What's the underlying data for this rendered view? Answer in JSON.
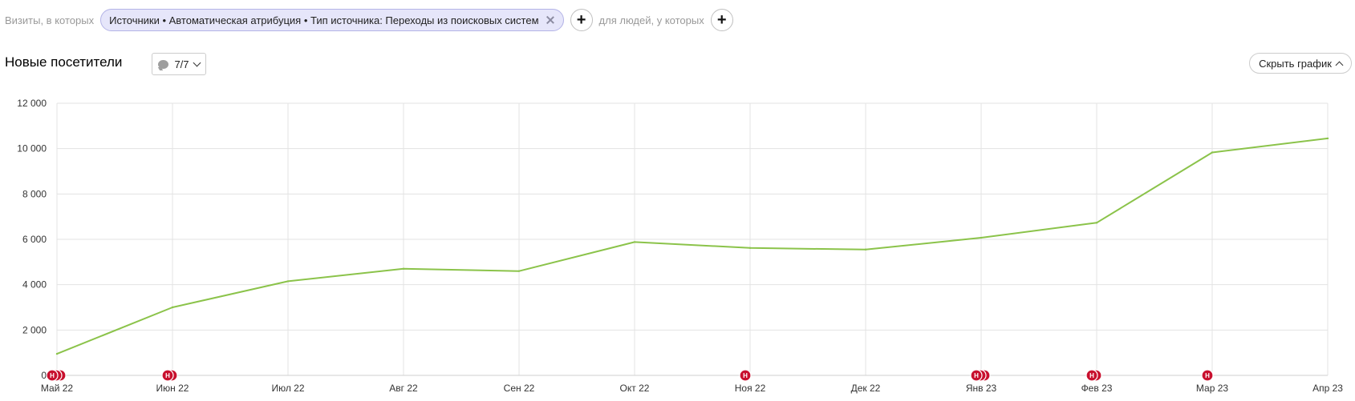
{
  "filters": {
    "prefix_label": "Визиты, в которых",
    "chip_text": "Источники • Автоматическая атрибуция • Тип источника: Переходы из поисковых систем",
    "people_label": "для людей, у которых",
    "add_symbol": "+"
  },
  "header": {
    "title": "Новые посетители",
    "comments_count": "7/7",
    "hide_chart_label": "Скрыть график"
  },
  "chart_data": {
    "type": "line",
    "categories": [
      "Май 22",
      "Июн 22",
      "Июл 22",
      "Авг 22",
      "Сен 22",
      "Окт 22",
      "Ноя 22",
      "Дек 22",
      "Янв 23",
      "Фев 23",
      "Мар 23",
      "Апр 23"
    ],
    "values": [
      950,
      3000,
      4150,
      4700,
      4600,
      5880,
      5620,
      5550,
      6070,
      6730,
      9830,
      10450
    ],
    "yticks": [
      0,
      2000,
      4000,
      6000,
      8000,
      10000,
      12000
    ],
    "ytick_labels": [
      "0",
      "2 000",
      "4 000",
      "6 000",
      "8 000",
      "10 000",
      "12 000"
    ],
    "ylim": [
      0,
      12000
    ],
    "grid": true,
    "line_color": "#8bc34a",
    "annotations": {
      "marker_letter": "Н",
      "marker_color": "#c8102e",
      "groups": [
        {
          "category": "Май 22",
          "count": 3
        },
        {
          "category": "Июн 22",
          "count": 2
        },
        {
          "category": "Ноя 22",
          "count": 1
        },
        {
          "category": "Янв 23",
          "count": 3
        },
        {
          "category": "Фев 23",
          "count": 2
        },
        {
          "category": "Мар 23",
          "count": 1
        }
      ]
    }
  }
}
